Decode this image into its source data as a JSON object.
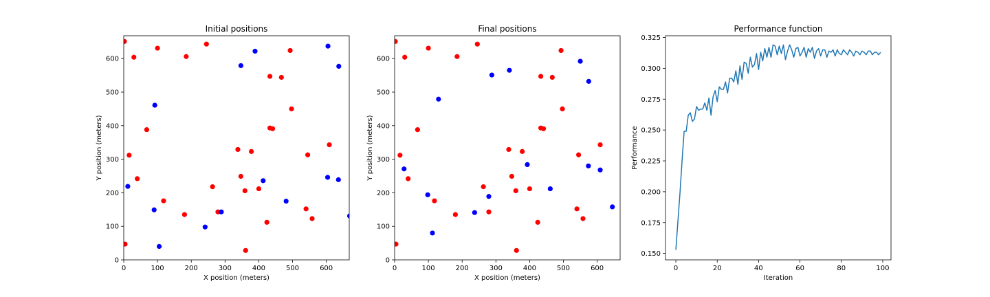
{
  "chart_data": [
    {
      "type": "scatter",
      "title": "Initial positions",
      "xlabel": "X position (meters)",
      "ylabel": "Y position (meters)",
      "xlim": [
        0,
        668
      ],
      "ylim": [
        0,
        668
      ],
      "xticks": [
        0,
        100,
        200,
        300,
        400,
        500,
        600
      ],
      "yticks": [
        0,
        100,
        200,
        300,
        400,
        500,
        600
      ],
      "series": [
        {
          "color": "#ff0000",
          "points": [
            [
              2,
              651
            ],
            [
              30,
              604
            ],
            [
              100,
              631
            ],
            [
              185,
              606
            ],
            [
              245,
              643
            ],
            [
              493,
              624
            ],
            [
              68,
              388
            ],
            [
              16,
              312
            ],
            [
              40,
              242
            ],
            [
              338,
              329
            ],
            [
              378,
              323
            ],
            [
              433,
              547
            ],
            [
              467,
              544
            ],
            [
              497,
              450
            ],
            [
              433,
              393
            ],
            [
              441,
              391
            ],
            [
              609,
              343
            ],
            [
              545,
              313
            ],
            [
              263,
              218
            ],
            [
              347,
              249
            ],
            [
              359,
              206
            ],
            [
              400,
              212
            ],
            [
              118,
              176
            ],
            [
              180,
              135
            ],
            [
              279,
              143
            ],
            [
              424,
              112
            ],
            [
              540,
              152
            ],
            [
              558,
              123
            ],
            [
              4,
              47
            ],
            [
              361,
              28
            ]
          ]
        },
        {
          "color": "#0000ff",
          "points": [
            [
              347,
              579
            ],
            [
              389,
              622
            ],
            [
              605,
              637
            ],
            [
              637,
              577
            ],
            [
              92,
              461
            ],
            [
              12,
              219
            ],
            [
              90,
              149
            ],
            [
              105,
              40
            ],
            [
              241,
              98
            ],
            [
              289,
              143
            ],
            [
              413,
              236
            ],
            [
              481,
              175
            ],
            [
              604,
              246
            ],
            [
              636,
              239
            ],
            [
              669,
              131
            ]
          ]
        }
      ]
    },
    {
      "type": "scatter",
      "title": "Final positions",
      "xlabel": "X position (meters)",
      "ylabel": "Y position (meters)",
      "xlim": [
        0,
        668
      ],
      "ylim": [
        0,
        668
      ],
      "xticks": [
        0,
        100,
        200,
        300,
        400,
        500,
        600
      ],
      "yticks": [
        0,
        100,
        200,
        300,
        400,
        500,
        600
      ],
      "series": [
        {
          "color": "#ff0000",
          "points": [
            [
              2,
              651
            ],
            [
              30,
              604
            ],
            [
              100,
              631
            ],
            [
              185,
              606
            ],
            [
              245,
              643
            ],
            [
              493,
              624
            ],
            [
              68,
              388
            ],
            [
              16,
              312
            ],
            [
              40,
              242
            ],
            [
              338,
              329
            ],
            [
              378,
              323
            ],
            [
              433,
              547
            ],
            [
              467,
              544
            ],
            [
              497,
              450
            ],
            [
              433,
              393
            ],
            [
              441,
              391
            ],
            [
              609,
              343
            ],
            [
              545,
              313
            ],
            [
              263,
              218
            ],
            [
              347,
              249
            ],
            [
              359,
              206
            ],
            [
              400,
              212
            ],
            [
              118,
              176
            ],
            [
              180,
              135
            ],
            [
              279,
              143
            ],
            [
              424,
              112
            ],
            [
              540,
              152
            ],
            [
              558,
              123
            ],
            [
              4,
              47
            ],
            [
              361,
              28
            ]
          ]
        },
        {
          "color": "#0000ff",
          "points": [
            [
              130,
              479
            ],
            [
              288,
              551
            ],
            [
              340,
              565
            ],
            [
              550,
              592
            ],
            [
              575,
              532
            ],
            [
              28,
              271
            ],
            [
              98,
              194
            ],
            [
              112,
              80
            ],
            [
              237,
              141
            ],
            [
              279,
              189
            ],
            [
              393,
              284
            ],
            [
              461,
              212
            ],
            [
              574,
              280
            ],
            [
              609,
              268
            ],
            [
              645,
              158
            ]
          ]
        }
      ]
    },
    {
      "type": "line",
      "title": "Performance function",
      "xlabel": "Iteration",
      "ylabel": "Performance",
      "xlim": [
        -5,
        104
      ],
      "ylim": [
        0.1448,
        0.3264
      ],
      "xticks": [
        0,
        20,
        40,
        60,
        80,
        100
      ],
      "yticks": [
        0.15,
        0.175,
        0.2,
        0.225,
        0.25,
        0.275,
        0.3,
        0.325
      ],
      "ytick_labels": [
        "0.150",
        "0.175",
        "0.200",
        "0.225",
        "0.250",
        "0.275",
        "0.300",
        "0.325"
      ],
      "series": [
        {
          "color": "#1f77b4",
          "values": [
            0.153,
            0.176,
            0.199,
            0.225,
            0.249,
            0.249,
            0.262,
            0.264,
            0.257,
            0.259,
            0.269,
            0.266,
            0.267,
            0.267,
            0.272,
            0.266,
            0.276,
            0.262,
            0.277,
            0.282,
            0.273,
            0.285,
            0.283,
            0.283,
            0.289,
            0.28,
            0.292,
            0.292,
            0.289,
            0.298,
            0.287,
            0.302,
            0.291,
            0.305,
            0.304,
            0.296,
            0.309,
            0.301,
            0.303,
            0.312,
            0.299,
            0.313,
            0.306,
            0.316,
            0.309,
            0.317,
            0.309,
            0.319,
            0.318,
            0.311,
            0.318,
            0.312,
            0.319,
            0.307,
            0.314,
            0.319,
            0.315,
            0.309,
            0.316,
            0.317,
            0.31,
            0.313,
            0.317,
            0.309,
            0.316,
            0.313,
            0.317,
            0.308,
            0.314,
            0.316,
            0.31,
            0.315,
            0.315,
            0.309,
            0.314,
            0.313,
            0.315,
            0.31,
            0.315,
            0.312,
            0.311,
            0.315,
            0.313,
            0.311,
            0.315,
            0.313,
            0.31,
            0.314,
            0.313,
            0.311,
            0.314,
            0.313,
            0.311,
            0.314,
            0.314,
            0.311,
            0.313,
            0.313,
            0.311,
            0.313
          ]
        }
      ]
    }
  ]
}
